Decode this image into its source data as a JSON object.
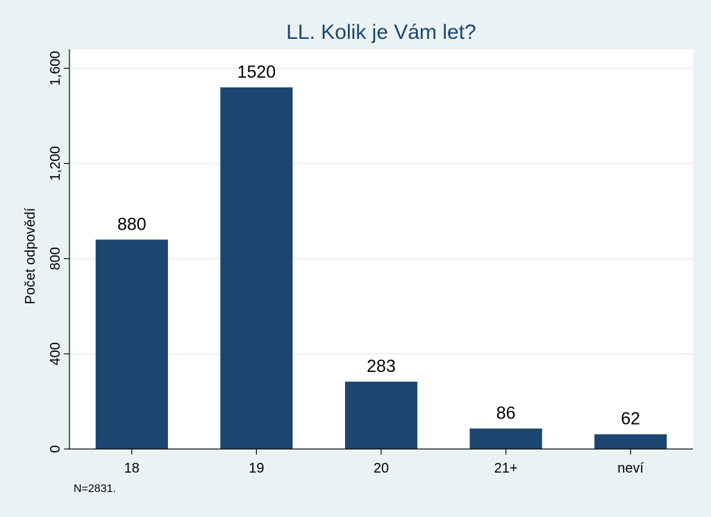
{
  "chart_data": {
    "type": "bar",
    "title": "LL. Kolik je Vám let?",
    "xlabel": "",
    "ylabel": "Počet odpovědí",
    "categories": [
      "18",
      "19",
      "20",
      "21+",
      "neví"
    ],
    "values": [
      880,
      1520,
      283,
      86,
      62
    ],
    "data_labels": [
      "880",
      "1520",
      "283",
      "86",
      "62"
    ],
    "ylim": [
      0,
      1680
    ],
    "yticks": [
      0,
      400,
      800,
      1200,
      1600
    ],
    "ytick_labels": [
      "0",
      "400",
      "800",
      "1,200",
      "1,600"
    ],
    "grid": true,
    "legend": "none",
    "note": "N=2831.",
    "colors": {
      "bar": "#1c466f",
      "background": "#eaf2f3",
      "plot_background": "#ffffff",
      "title": "#1a476f",
      "grid": "#eaf2f3"
    }
  }
}
